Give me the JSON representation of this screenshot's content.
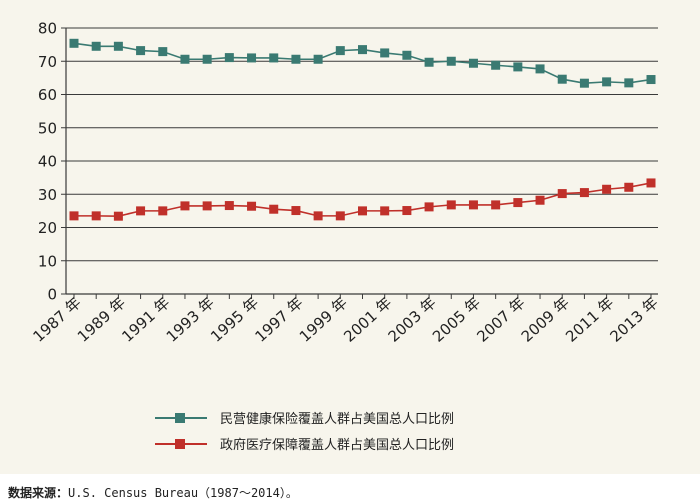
{
  "chart_data": {
    "type": "line",
    "x": [
      1987,
      1988,
      1989,
      1990,
      1991,
      1992,
      1993,
      1994,
      1995,
      1996,
      1997,
      1998,
      1999,
      2000,
      2001,
      2002,
      2003,
      2004,
      2005,
      2006,
      2007,
      2008,
      2009,
      2010,
      2011,
      2012,
      2013
    ],
    "xtick_labels": [
      "1987 年",
      "1989 年",
      "1991 年",
      "1993 年",
      "1995 年",
      "1997 年",
      "1999 年",
      "2001 年",
      "2003 年",
      "2005 年",
      "2007 年",
      "2009 年",
      "2011 年",
      "2013 年"
    ],
    "yticks": [
      0,
      10,
      20,
      30,
      40,
      50,
      60,
      70,
      80
    ],
    "ylim": [
      0,
      80
    ],
    "grid": "horizontal",
    "legend_position": "bottom",
    "series": [
      {
        "name": "民营健康保险覆盖人群占美国总人口比例",
        "color": "#3a7a72",
        "values": [
          75.4,
          74.5,
          74.5,
          73.2,
          72.9,
          70.6,
          70.6,
          71.1,
          71.0,
          71.0,
          70.6,
          70.6,
          73.2,
          73.5,
          72.5,
          71.8,
          69.7,
          70.0,
          69.4,
          68.8,
          68.3,
          67.7,
          64.6,
          63.4,
          63.8,
          63.5,
          64.5
        ]
      },
      {
        "name": "政府医疗保障覆盖人群占美国总人口比例",
        "color": "#c0302a",
        "values": [
          23.5,
          23.5,
          23.4,
          25.0,
          25.0,
          26.5,
          26.5,
          26.6,
          26.4,
          25.5,
          25.1,
          23.5,
          23.5,
          25.0,
          25.0,
          25.1,
          26.2,
          26.8,
          26.8,
          26.8,
          27.5,
          28.2,
          30.2,
          30.5,
          31.5,
          32.1,
          33.4
        ]
      }
    ]
  },
  "source": {
    "label": "数据来源：",
    "text": "U.S.  Census Bureau（1987～2014）。"
  }
}
